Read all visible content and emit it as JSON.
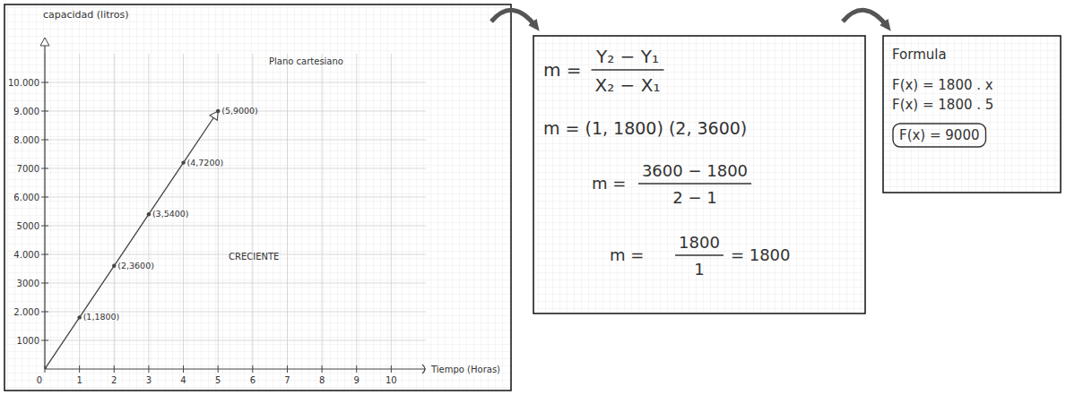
{
  "chart_data": {
    "type": "line",
    "x_label": "Tiempo (Horas)",
    "y_label": "capacidad (litros)",
    "annotations": [
      "Plano cartesiano",
      "CRECIENTE"
    ],
    "x": [
      0,
      1,
      2,
      3,
      4,
      5
    ],
    "values": [
      0,
      1800,
      3600,
      5400,
      7200,
      9000
    ],
    "value_labels": [
      null,
      "(1,1800)",
      "(2,3600)",
      "(3,5400)",
      "(4,7200)",
      "(5,9000)"
    ],
    "data_labels": true,
    "color": "#444444",
    "marker": "dot",
    "xlim": [
      0,
      11
    ],
    "xticks": [
      0,
      1,
      2,
      3,
      4,
      5,
      6,
      7,
      8,
      9,
      10
    ],
    "ylim": [
      0,
      11000
    ],
    "yticks": [
      1000,
      {
        "value": 2000,
        "label": "2.000"
      },
      3000,
      {
        "value": 4000,
        "label": "4.000"
      },
      5000,
      {
        "value": 6000,
        "label": "6.000"
      },
      7000,
      {
        "value": 8000,
        "label": "8.000"
      },
      {
        "value": 9000,
        "label": "9.000"
      },
      {
        "value": 10000,
        "label": "10.000"
      }
    ],
    "grid": true
  },
  "slope_panel": {
    "formula": {
      "lhs": "m =",
      "numerator": "Y₂ − Y₁",
      "denominator": "X₂ − X₁"
    },
    "points_line": "m = (1, 1800) (2, 3600)",
    "substitution": {
      "lhs": "m =",
      "numerator": "3600 − 1800",
      "denominator": "2 − 1"
    },
    "result": {
      "lhs": "m =",
      "numerator": "1800",
      "denominator": "1",
      "rhs": "= 1800"
    }
  },
  "formula_panel": {
    "title": "Formula",
    "lines": [
      "F(x) = 1800 . x",
      "F(x) = 1800 . 5"
    ],
    "answer": "F(x) = 9000"
  }
}
